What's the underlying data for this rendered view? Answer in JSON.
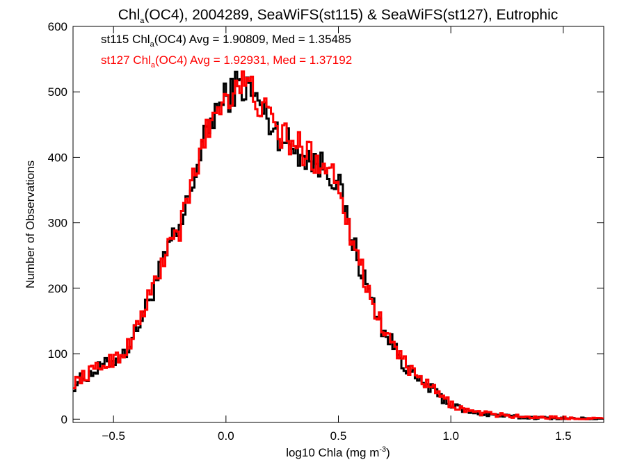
{
  "chart_data": {
    "type": "line",
    "step": true,
    "title": {
      "pre": "Chl",
      "sub": "a",
      "post": "(OC4), 2004289, SeaWiFS(st115) & SeaWiFS(st127), Eutrophic"
    },
    "xlabel": {
      "pre": "log10 Chla (mg m",
      "sup": "-3",
      "post": ")"
    },
    "ylabel": "Number of Observations",
    "xlim": [
      -0.68,
      1.68
    ],
    "ylim": [
      -5,
      600
    ],
    "xticks": [
      -0.5,
      0.0,
      0.5,
      1.0,
      1.5
    ],
    "xtick_labels": [
      "−0.5",
      "0.0",
      "0.5",
      "1.0",
      "1.5"
    ],
    "yticks": [
      0,
      100,
      200,
      300,
      400,
      500,
      600
    ],
    "ytick_labels": [
      "0",
      "100",
      "200",
      "300",
      "400",
      "500",
      "600"
    ],
    "grid": false,
    "legend_position": "top-left",
    "series": [
      {
        "color": "#000000",
        "legend": {
          "pre": "st115 Chl",
          "sub": "a",
          "post": "(OC4) Avg = 1.90809, Med = 1.35485"
        },
        "x": [
          -0.68,
          -0.65,
          -0.6,
          -0.55,
          -0.5,
          -0.45,
          -0.4,
          -0.35,
          -0.3,
          -0.25,
          -0.2,
          -0.15,
          -0.1,
          -0.05,
          0.0,
          0.05,
          0.1,
          0.15,
          0.2,
          0.25,
          0.3,
          0.35,
          0.4,
          0.45,
          0.5,
          0.55,
          0.6,
          0.65,
          0.7,
          0.75,
          0.8,
          0.85,
          0.9,
          0.95,
          1.0,
          1.05,
          1.1,
          1.2,
          1.3,
          1.4,
          1.5,
          1.6,
          1.68
        ],
        "y": [
          50,
          60,
          70,
          80,
          90,
          100,
          135,
          175,
          220,
          265,
          290,
          360,
          420,
          470,
          490,
          510,
          505,
          480,
          450,
          430,
          415,
          405,
          390,
          385,
          360,
          290,
          230,
          180,
          135,
          110,
          80,
          60,
          50,
          35,
          22,
          15,
          10,
          6,
          3,
          2,
          1,
          1,
          0
        ]
      },
      {
        "color": "#ff0000",
        "legend": {
          "pre": "st127 Chl",
          "sub": "a",
          "post": "(OC4) Avg = 1.92931, Med = 1.37192"
        },
        "x": [
          -0.68,
          -0.65,
          -0.6,
          -0.55,
          -0.5,
          -0.45,
          -0.4,
          -0.35,
          -0.3,
          -0.25,
          -0.2,
          -0.15,
          -0.1,
          -0.05,
          0.0,
          0.05,
          0.1,
          0.15,
          0.2,
          0.25,
          0.3,
          0.35,
          0.4,
          0.45,
          0.5,
          0.55,
          0.6,
          0.65,
          0.7,
          0.75,
          0.8,
          0.85,
          0.9,
          0.95,
          1.0,
          1.05,
          1.1,
          1.2,
          1.3,
          1.4,
          1.5,
          1.6,
          1.68
        ],
        "y": [
          55,
          62,
          72,
          82,
          92,
          102,
          138,
          178,
          222,
          268,
          292,
          362,
          422,
          472,
          493,
          512,
          508,
          483,
          453,
          433,
          420,
          410,
          395,
          390,
          365,
          293,
          232,
          182,
          137,
          112,
          82,
          62,
          52,
          37,
          23,
          16,
          11,
          7,
          4,
          3,
          2,
          1,
          1
        ]
      }
    ]
  }
}
